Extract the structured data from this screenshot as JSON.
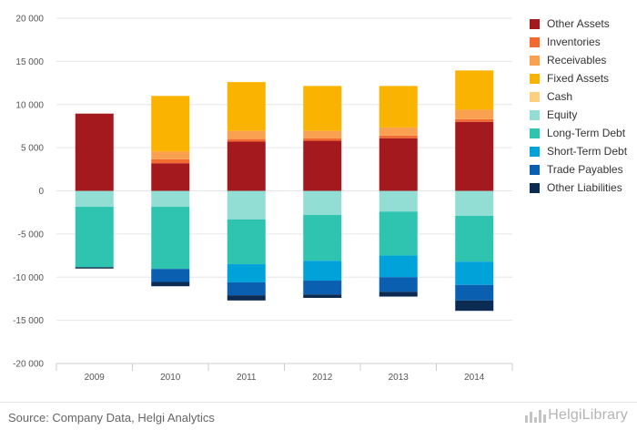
{
  "chart_data": {
    "type": "bar",
    "stacked": true,
    "categories": [
      "2009",
      "2010",
      "2011",
      "2012",
      "2013",
      "2014"
    ],
    "ylim": [
      -20000,
      20000
    ],
    "yticks": [
      20000,
      15000,
      10000,
      5000,
      0,
      -5000,
      -10000,
      -15000,
      -20000
    ],
    "ytick_labels": [
      "20 000",
      "15 000",
      "10 000",
      "5 000",
      "0",
      "-5 000",
      "-10 000",
      "-15 000",
      "-20 000"
    ],
    "grid": true,
    "legend_position": "right",
    "series": [
      {
        "name": "Other Assets",
        "color": "#a3191e",
        "values": [
          8950,
          3200,
          5700,
          5800,
          6100,
          8000
        ]
      },
      {
        "name": "Inventories",
        "color": "#f26a2f",
        "values": [
          0,
          450,
          300,
          300,
          300,
          300
        ]
      },
      {
        "name": "Receivables",
        "color": "#f9a150",
        "values": [
          0,
          900,
          950,
          850,
          950,
          1100
        ]
      },
      {
        "name": "Fixed Assets",
        "color": "#f9b300",
        "values": [
          0,
          6450,
          5650,
          5200,
          4800,
          4550
        ]
      },
      {
        "name": "Cash",
        "color": "#fcd07e",
        "values": [
          0,
          0,
          0,
          0,
          0,
          0
        ]
      },
      {
        "name": "Equity",
        "color": "#92ded5",
        "values": [
          -1850,
          -1850,
          -3300,
          -2800,
          -2400,
          -2900
        ]
      },
      {
        "name": "Long-Term Debt",
        "color": "#2ec4b0",
        "values": [
          -7000,
          -7200,
          -5200,
          -5300,
          -5100,
          -5300
        ]
      },
      {
        "name": "Short-Term Debt",
        "color": "#00a3d9",
        "values": [
          0,
          0,
          -2100,
          -2300,
          -2500,
          -2700
        ]
      },
      {
        "name": "Trade Payables",
        "color": "#0a5fb0",
        "values": [
          0,
          -1500,
          -1500,
          -1600,
          -1700,
          -1800
        ]
      },
      {
        "name": "Other Liabilities",
        "color": "#0b2b52",
        "values": [
          -150,
          -500,
          -600,
          -400,
          -550,
          -1200
        ]
      }
    ]
  },
  "source_text": "Source: Company Data, Helgi Analytics",
  "logo_text": "HelgiLibrary"
}
